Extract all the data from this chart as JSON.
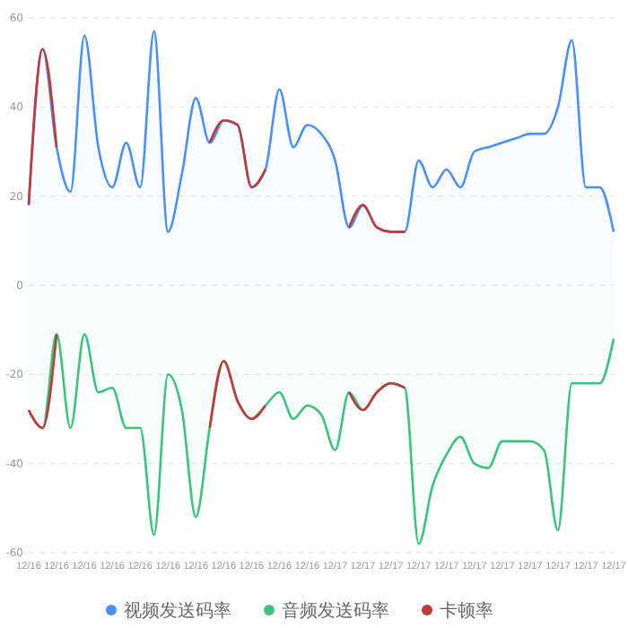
{
  "chart_data": {
    "type": "line",
    "categories": [
      "12/16",
      null,
      "12/16",
      null,
      "12/16",
      null,
      "12/16",
      null,
      "12/16",
      null,
      "12/16",
      null,
      "12/16",
      null,
      "12/16",
      null,
      "12/16",
      null,
      "12/16",
      null,
      "12/16",
      null,
      "12/17",
      null,
      "12/17",
      null,
      "12/17",
      null,
      "12/17",
      null,
      "12/17",
      null,
      "12/17",
      null,
      "12/17",
      null,
      "12/17",
      null,
      "12/17",
      null,
      "12/17",
      null,
      "12/17"
    ],
    "series": [
      {
        "name": "视频发送码率",
        "type": "area",
        "color": "#4a90f5",
        "values": [
          18,
          53,
          31,
          21,
          56,
          31,
          22,
          32,
          22,
          57,
          12,
          25,
          42,
          32,
          37,
          36,
          22,
          26,
          44,
          31,
          36,
          34,
          28,
          13,
          18,
          13,
          12,
          12,
          28,
          22,
          26,
          22,
          30,
          31,
          32,
          33,
          34,
          34,
          40,
          55,
          22,
          22,
          12
        ]
      },
      {
        "name": "音频发送码率",
        "type": "area",
        "color": "#3cc47c",
        "values": [
          -28,
          -32,
          -11,
          -32,
          -11,
          -24,
          -23,
          -32,
          -32,
          -56,
          -20,
          -28,
          -52,
          -32,
          -17,
          -26,
          -30,
          -27,
          -24,
          -30,
          -27,
          -29,
          -37,
          -24,
          -28,
          -24,
          -22,
          -23,
          -58,
          -45,
          -38,
          -34,
          -40,
          -41,
          -35,
          -35,
          -35,
          -37,
          -55,
          -22,
          -22,
          -22,
          -12
        ]
      },
      {
        "name": "卡顿率",
        "color": "#c0393b",
        "values": [
          18,
          53,
          31,
          null,
          null,
          null,
          null,
          null,
          null,
          null,
          null,
          null,
          null,
          32,
          37,
          36,
          22,
          26,
          null,
          null,
          null,
          null,
          null,
          13,
          18,
          13,
          12,
          12,
          null,
          null,
          null,
          null,
          null,
          null,
          null,
          null,
          null,
          null,
          null,
          null,
          null,
          null,
          null
        ]
      },
      {
        "color": "#c0393b",
        "values": [
          -28,
          -32,
          -11,
          null,
          null,
          null,
          null,
          null,
          null,
          null,
          null,
          null,
          null,
          -32,
          -17,
          -26,
          -30,
          -27,
          null,
          null,
          null,
          null,
          null,
          -24,
          -28,
          -24,
          -22,
          -23,
          null,
          null,
          null,
          null,
          null,
          null,
          null,
          null,
          null,
          null,
          null,
          null,
          null,
          null,
          null
        ]
      }
    ],
    "ylim": [
      -60,
      60
    ],
    "yticks": [
      -60,
      -40,
      -20,
      0,
      20,
      40,
      60
    ],
    "grid": "y",
    "legend": "bottom",
    "marker": "none",
    "line_style": "solid"
  }
}
